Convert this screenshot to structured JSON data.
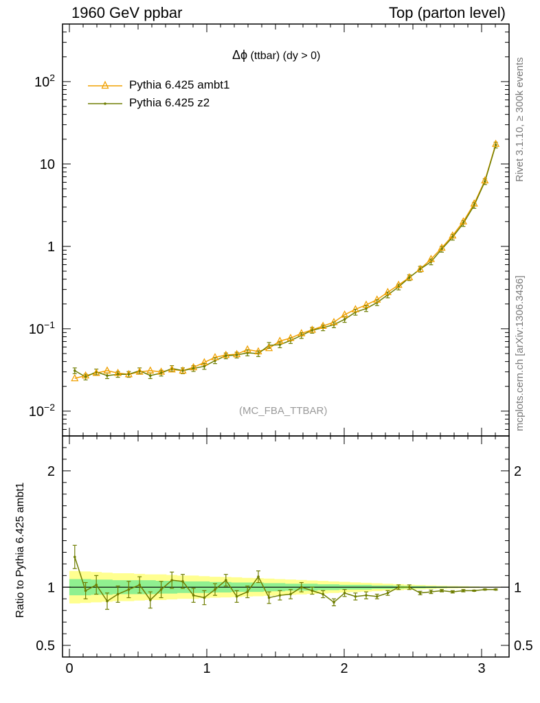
{
  "header": {
    "left": "1960 GeV ppbar",
    "right": "Top (parton level)"
  },
  "side_labels": {
    "rivet": "Rivet 3.1.10, ≥ 300k events",
    "mcplots": "mcplots.cern.ch [arXiv:1306.3436]"
  },
  "plot": {
    "title_symbol": "Δϕ",
    "title_text": " (ttbar) (dy > 0)",
    "analysis": "(MC_FBA_TTBAR)"
  },
  "colors": {
    "ambt1": "#f0a000",
    "z2": "#6e7d00",
    "band_inner": "#90f090",
    "band_outer": "#ffff90"
  },
  "chart_data": [
    {
      "type": "line",
      "title": "Δϕ (ttbar) (dy > 0)",
      "xlabel": "",
      "ylabel": "",
      "log_y": true,
      "xlim": [
        -0.05,
        3.2
      ],
      "ylim": [
        0.005,
        500
      ],
      "x_ticks": [
        0,
        1,
        2,
        3
      ],
      "y_tick_labels": [
        "10^-2",
        "10^-1",
        "1",
        "10",
        "10^2"
      ],
      "legend_position": "top-left",
      "x": [
        0.039,
        0.118,
        0.196,
        0.275,
        0.353,
        0.432,
        0.511,
        0.589,
        0.668,
        0.746,
        0.825,
        0.903,
        0.982,
        1.06,
        1.139,
        1.218,
        1.296,
        1.375,
        1.453,
        1.532,
        1.61,
        1.689,
        1.767,
        1.846,
        1.925,
        2.003,
        2.082,
        2.16,
        2.239,
        2.317,
        2.396,
        2.474,
        2.553,
        2.632,
        2.71,
        2.789,
        2.867,
        2.946,
        3.024,
        3.103
      ],
      "series": [
        {
          "name": "Pythia 6.425 ambt1",
          "marker": "triangle",
          "values": [
            0.025,
            0.027,
            0.029,
            0.031,
            0.029,
            0.028,
            0.03,
            0.031,
            0.03,
            0.032,
            0.031,
            0.034,
            0.039,
            0.045,
            0.048,
            0.049,
            0.056,
            0.053,
            0.058,
            0.071,
            0.077,
            0.088,
            0.097,
            0.108,
            0.12,
            0.148,
            0.172,
            0.195,
            0.225,
            0.278,
            0.34,
            0.42,
            0.53,
            0.7,
            0.96,
            1.35,
            2.0,
            3.3,
            6.3,
            17.5
          ]
        },
        {
          "name": "Pythia 6.425 z2",
          "marker": "dot",
          "values": [
            0.031,
            0.026,
            0.03,
            0.027,
            0.028,
            0.028,
            0.031,
            0.027,
            0.029,
            0.033,
            0.031,
            0.033,
            0.035,
            0.041,
            0.047,
            0.048,
            0.051,
            0.05,
            0.063,
            0.064,
            0.072,
            0.083,
            0.096,
            0.103,
            0.112,
            0.13,
            0.159,
            0.176,
            0.208,
            0.258,
            0.322,
            0.418,
            0.53,
            0.65,
            0.925,
            1.295,
            1.9,
            3.15,
            6.12,
            17.0
          ]
        }
      ]
    },
    {
      "type": "line",
      "title": "",
      "xlabel": "",
      "ylabel": "Ratio to Pythia 6.425 ambt1",
      "xlim": [
        -0.05,
        3.2
      ],
      "ylim": [
        0.4,
        2.3
      ],
      "x_ticks": [
        0,
        1,
        2,
        3
      ],
      "y_ticks": [
        0.5,
        1,
        2
      ],
      "x": [
        0.039,
        0.118,
        0.196,
        0.275,
        0.353,
        0.432,
        0.511,
        0.589,
        0.668,
        0.746,
        0.825,
        0.903,
        0.982,
        1.06,
        1.139,
        1.218,
        1.296,
        1.375,
        1.453,
        1.532,
        1.61,
        1.689,
        1.767,
        1.846,
        1.925,
        2.003,
        2.082,
        2.16,
        2.239,
        2.317,
        2.396,
        2.474,
        2.553,
        2.632,
        2.71,
        2.789,
        2.867,
        2.946,
        3.024,
        3.103
      ],
      "series": [
        {
          "name": "Pythia 6.425 z2",
          "values": [
            1.26,
            0.97,
            1.02,
            0.88,
            0.94,
            0.98,
            1.02,
            0.89,
            0.98,
            1.06,
            1.05,
            0.93,
            0.91,
            0.98,
            1.06,
            0.92,
            0.96,
            1.09,
            0.91,
            0.93,
            0.94,
            1.0,
            0.97,
            0.94,
            0.87,
            0.95,
            0.92,
            0.93,
            0.92,
            0.95,
            1.0,
            1.0,
            0.95,
            0.96,
            0.97,
            0.96,
            0.97,
            0.97,
            0.98,
            0.98
          ],
          "errors": [
            0.1,
            0.07,
            0.08,
            0.07,
            0.07,
            0.07,
            0.07,
            0.07,
            0.07,
            0.07,
            0.06,
            0.06,
            0.06,
            0.05,
            0.05,
            0.05,
            0.05,
            0.05,
            0.05,
            0.04,
            0.04,
            0.04,
            0.03,
            0.03,
            0.03,
            0.03,
            0.03,
            0.03,
            0.02,
            0.02,
            0.02,
            0.02,
            0.015,
            0.015,
            0.01,
            0.01,
            0.01,
            0.005,
            0.005,
            0.005
          ]
        }
      ],
      "band_inner_halfwidth": [
        0.07,
        0.07,
        0.065,
        0.065,
        0.06,
        0.06,
        0.06,
        0.06,
        0.055,
        0.055,
        0.05,
        0.05,
        0.05,
        0.045,
        0.045,
        0.04,
        0.04,
        0.04,
        0.035,
        0.035,
        0.03,
        0.03,
        0.03,
        0.025,
        0.025,
        0.02,
        0.02,
        0.02,
        0.015,
        0.015,
        0.012,
        0.01,
        0.01,
        0.008,
        0.006,
        0.005,
        0.004,
        0.003,
        0.002,
        0.002
      ],
      "band_outer_halfwidth": [
        0.14,
        0.135,
        0.13,
        0.125,
        0.12,
        0.12,
        0.115,
        0.11,
        0.11,
        0.105,
        0.1,
        0.1,
        0.095,
        0.09,
        0.088,
        0.085,
        0.08,
        0.078,
        0.074,
        0.07,
        0.066,
        0.062,
        0.058,
        0.054,
        0.05,
        0.046,
        0.042,
        0.038,
        0.034,
        0.03,
        0.026,
        0.022,
        0.019,
        0.016,
        0.013,
        0.011,
        0.009,
        0.007,
        0.005,
        0.004
      ]
    }
  ]
}
